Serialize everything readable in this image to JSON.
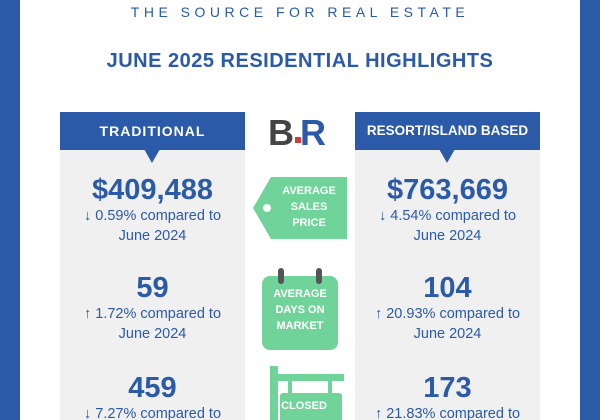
{
  "header": {
    "tagline": "THE SOURCE FOR REAL ESTATE",
    "headline": "JUNE 2025 RESIDENTIAL HIGHLIGHTS"
  },
  "colors": {
    "brand_blue": "#2a5aa8",
    "accent_green": "#6fd39a",
    "panel_gray": "#f0f0f0"
  },
  "left": {
    "title": "TRADITIONAL",
    "price": {
      "value": "$409,488",
      "change": "↓ 0.59% compared to",
      "period": "June 2024"
    },
    "days": {
      "value": "59",
      "change": "↑ 1.72% compared to",
      "period": "June 2024"
    },
    "closed": {
      "value": "459",
      "change": "↓ 7.27% compared to"
    }
  },
  "right": {
    "title": "RESORT/ISLAND BASED",
    "price": {
      "value": "$763,669",
      "change": "↓ 4.54% compared to",
      "period": "June 2024"
    },
    "days": {
      "value": "104",
      "change": "↑ 20.93% compared to",
      "period": "June 2024"
    },
    "closed": {
      "value": "173",
      "change": "↑ 21.83% compared to"
    }
  },
  "center": {
    "logo_text": "BR",
    "price_label_1": "AVERAGE",
    "price_label_2": "SALES",
    "price_label_3": "PRICE",
    "days_label_1": "AVERAGE",
    "days_label_2": "DAYS ON",
    "days_label_3": "MARKET",
    "closed_label": "CLOSED"
  }
}
